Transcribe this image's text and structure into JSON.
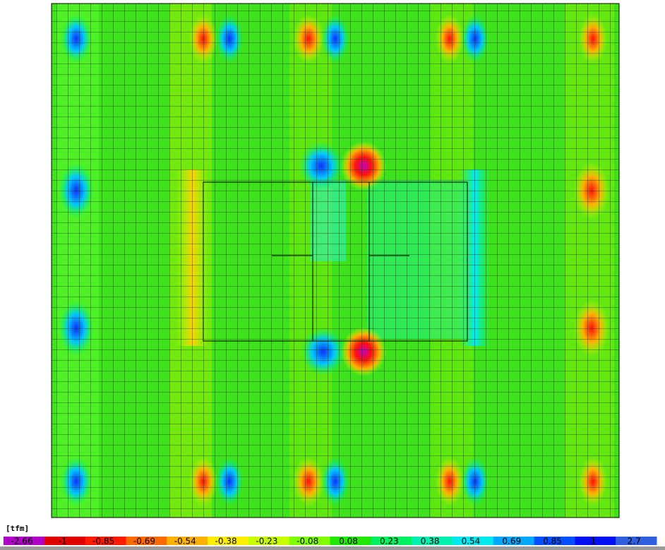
{
  "legend": {
    "unit": "[tfm]",
    "labels": [
      "-2.66",
      "-1",
      "-0.85",
      "-0.69",
      "-0.54",
      "-0.38",
      "-0.23",
      "-0.08",
      "0.08",
      "0.23",
      "0.38",
      "0.54",
      "0.69",
      "0.85",
      "1",
      "2.7"
    ]
  }
}
